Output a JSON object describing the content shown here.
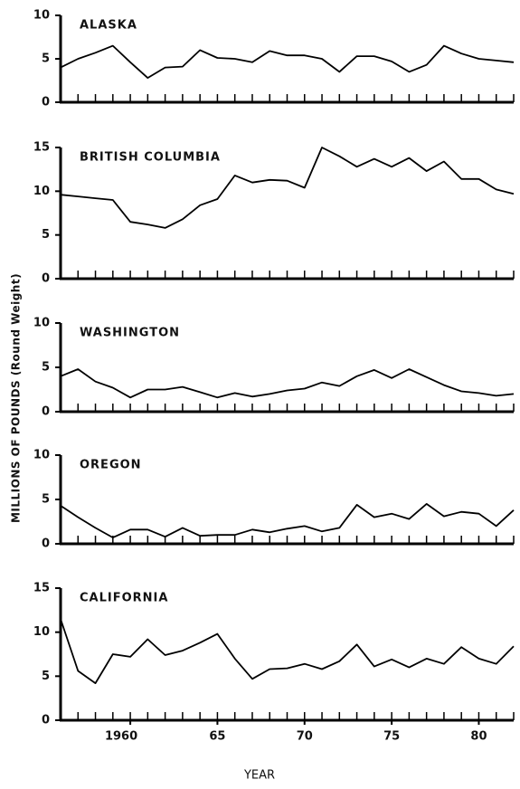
{
  "y_label": "MILLIONS OF POUNDS (Round Weight)",
  "x_label": "YEAR",
  "chart_data": [
    {
      "type": "line",
      "title": "ALASKA",
      "color": "#000000",
      "x": [
        1956,
        1957,
        1958,
        1959,
        1960,
        1961,
        1962,
        1963,
        1964,
        1965,
        1966,
        1967,
        1968,
        1969,
        1970,
        1971,
        1972,
        1973,
        1974,
        1975,
        1976,
        1977,
        1978,
        1979,
        1980,
        1981,
        1982
      ],
      "values": [
        4.0,
        5.0,
        5.7,
        6.5,
        4.6,
        2.8,
        4.0,
        4.1,
        6.0,
        5.1,
        5.0,
        4.6,
        5.9,
        5.4,
        5.4,
        5.0,
        3.5,
        5.3,
        5.3,
        4.7,
        3.5,
        4.3,
        6.5,
        5.6,
        5.0,
        4.8,
        4.6
      ],
      "xlim": [
        1956,
        1982
      ],
      "ylim": [
        0,
        10
      ],
      "yticks": [
        0,
        5,
        10
      ],
      "xminorticks": [
        1956,
        1957,
        1958,
        1959,
        1960,
        1961,
        1962,
        1963,
        1964,
        1965,
        1966,
        1967,
        1968,
        1969,
        1970,
        1971,
        1972,
        1973,
        1974,
        1975,
        1976,
        1977,
        1978,
        1979,
        1980,
        1981,
        1982
      ]
    },
    {
      "type": "line",
      "title": "BRITISH COLUMBIA",
      "color": "#000000",
      "x": [
        1956,
        1957,
        1958,
        1959,
        1960,
        1961,
        1962,
        1963,
        1964,
        1965,
        1966,
        1967,
        1968,
        1969,
        1970,
        1971,
        1972,
        1973,
        1974,
        1975,
        1976,
        1977,
        1978,
        1979,
        1980,
        1981,
        1982
      ],
      "values": [
        9.6,
        9.4,
        9.2,
        9.0,
        6.5,
        6.2,
        5.8,
        6.8,
        8.4,
        9.1,
        11.8,
        11.0,
        11.3,
        11.2,
        10.4,
        15.0,
        14.0,
        12.8,
        13.7,
        12.8,
        13.8,
        12.3,
        13.4,
        11.4,
        11.4,
        10.2,
        9.7
      ],
      "xlim": [
        1956,
        1982
      ],
      "ylim": [
        0,
        15
      ],
      "yticks": [
        0,
        5,
        10,
        15
      ],
      "xminorticks": [
        1956,
        1957,
        1958,
        1959,
        1960,
        1961,
        1962,
        1963,
        1964,
        1965,
        1966,
        1967,
        1968,
        1969,
        1970,
        1971,
        1972,
        1973,
        1974,
        1975,
        1976,
        1977,
        1978,
        1979,
        1980,
        1981,
        1982
      ]
    },
    {
      "type": "line",
      "title": "WASHINGTON",
      "color": "#000000",
      "x": [
        1956,
        1957,
        1958,
        1959,
        1960,
        1961,
        1962,
        1963,
        1964,
        1965,
        1966,
        1967,
        1968,
        1969,
        1970,
        1971,
        1972,
        1973,
        1974,
        1975,
        1976,
        1977,
        1978,
        1979,
        1980,
        1981,
        1982
      ],
      "values": [
        4.0,
        4.8,
        3.4,
        2.7,
        1.6,
        2.5,
        2.5,
        2.8,
        2.2,
        1.6,
        2.1,
        1.7,
        2.0,
        2.4,
        2.6,
        3.3,
        2.9,
        4.0,
        4.7,
        3.8,
        4.8,
        3.9,
        3.0,
        2.3,
        2.1,
        1.8,
        2.0
      ],
      "xlim": [
        1956,
        1982
      ],
      "ylim": [
        0,
        10
      ],
      "yticks": [
        0,
        5,
        10
      ],
      "xminorticks": [
        1956,
        1957,
        1958,
        1959,
        1960,
        1961,
        1962,
        1963,
        1964,
        1965,
        1966,
        1967,
        1968,
        1969,
        1970,
        1971,
        1972,
        1973,
        1974,
        1975,
        1976,
        1977,
        1978,
        1979,
        1980,
        1981,
        1982
      ]
    },
    {
      "type": "line",
      "title": "OREGON",
      "color": "#000000",
      "x": [
        1956,
        1957,
        1958,
        1959,
        1960,
        1961,
        1962,
        1963,
        1964,
        1965,
        1966,
        1967,
        1968,
        1969,
        1970,
        1971,
        1972,
        1973,
        1974,
        1975,
        1976,
        1977,
        1978,
        1979,
        1980,
        1981,
        1982
      ],
      "values": [
        4.3,
        3.0,
        1.8,
        0.7,
        1.6,
        1.6,
        0.8,
        1.8,
        0.9,
        1.0,
        1.0,
        1.6,
        1.3,
        1.7,
        2.0,
        1.4,
        1.8,
        4.4,
        3.0,
        3.4,
        2.8,
        4.5,
        3.1,
        3.6,
        3.4,
        2.0,
        3.8
      ],
      "xlim": [
        1956,
        1982
      ],
      "ylim": [
        0,
        10
      ],
      "yticks": [
        0,
        5,
        10
      ],
      "xminorticks": [
        1956,
        1957,
        1958,
        1959,
        1960,
        1961,
        1962,
        1963,
        1964,
        1965,
        1966,
        1967,
        1968,
        1969,
        1970,
        1971,
        1972,
        1973,
        1974,
        1975,
        1976,
        1977,
        1978,
        1979,
        1980,
        1981,
        1982
      ]
    },
    {
      "type": "line",
      "title": "CALIFORNIA",
      "color": "#000000",
      "x": [
        1956,
        1957,
        1958,
        1959,
        1960,
        1961,
        1962,
        1963,
        1964,
        1965,
        1966,
        1967,
        1968,
        1969,
        1970,
        1971,
        1972,
        1973,
        1974,
        1975,
        1976,
        1977,
        1978,
        1979,
        1980,
        1981,
        1982
      ],
      "values": [
        11.5,
        5.6,
        4.2,
        7.5,
        7.2,
        9.2,
        7.4,
        7.9,
        8.8,
        9.8,
        7.0,
        4.7,
        5.8,
        5.9,
        6.4,
        5.8,
        6.7,
        8.6,
        6.1,
        6.9,
        6.0,
        7.0,
        6.4,
        8.3,
        7.0,
        6.4,
        8.4
      ],
      "xlim": [
        1956,
        1982
      ],
      "ylim": [
        0,
        15
      ],
      "yticks": [
        0,
        5,
        10,
        15
      ],
      "xticks": [
        1960,
        {
          "value": 1965,
          "label": "65"
        },
        {
          "value": 1970,
          "label": "70"
        },
        {
          "value": 1975,
          "label": "75"
        },
        {
          "value": 1980,
          "label": "80"
        }
      ],
      "xminorticks": [
        1956,
        1957,
        1958,
        1959,
        1960,
        1961,
        1962,
        1963,
        1964,
        1965,
        1966,
        1967,
        1968,
        1969,
        1970,
        1971,
        1972,
        1973,
        1974,
        1975,
        1976,
        1977,
        1978,
        1979,
        1980,
        1981,
        1982
      ]
    }
  ]
}
